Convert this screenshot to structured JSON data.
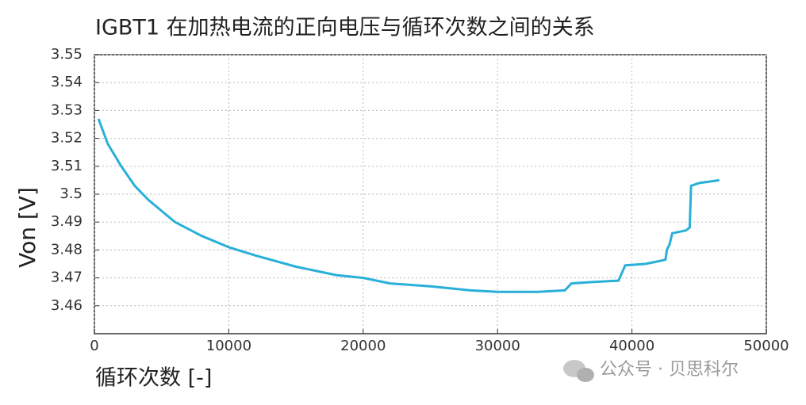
{
  "chart_data": {
    "type": "line",
    "title": "IGBT1 在加热电流的正向电压与循环次数之间的关系",
    "x_label": "循环次数 [-]",
    "y_label": "Von [V]",
    "watermark": "公众号 · 贝思科尔",
    "x": [
      300,
      1000,
      2000,
      3000,
      4000,
      5000,
      6000,
      8000,
      10000,
      12000,
      15000,
      18000,
      20000,
      22000,
      25000,
      28000,
      30000,
      33000,
      35000,
      35500,
      37000,
      39000,
      39500,
      41000,
      42000,
      42500,
      42600,
      42800,
      43000,
      44000,
      44300,
      44400,
      45000,
      46500
    ],
    "series": [
      {
        "name": "IGBT1",
        "color": "#29b0d8",
        "values": [
          3.527,
          3.518,
          3.51,
          3.503,
          3.498,
          3.494,
          3.49,
          3.485,
          3.481,
          3.478,
          3.474,
          3.471,
          3.47,
          3.468,
          3.467,
          3.4655,
          3.465,
          3.465,
          3.4655,
          3.468,
          3.4685,
          3.469,
          3.4745,
          3.475,
          3.476,
          3.4765,
          3.48,
          3.482,
          3.486,
          3.487,
          3.488,
          3.503,
          3.504,
          3.505
        ]
      }
    ],
    "xlim": [
      0,
      50000
    ],
    "xticks": [
      0,
      10000,
      20000,
      30000,
      40000,
      50000
    ],
    "ylim": [
      3.45,
      3.55
    ],
    "yticks": [
      3.46,
      3.47,
      3.48,
      3.49,
      3.5,
      3.51,
      3.52,
      3.53,
      3.54,
      3.55
    ],
    "grid": true
  }
}
